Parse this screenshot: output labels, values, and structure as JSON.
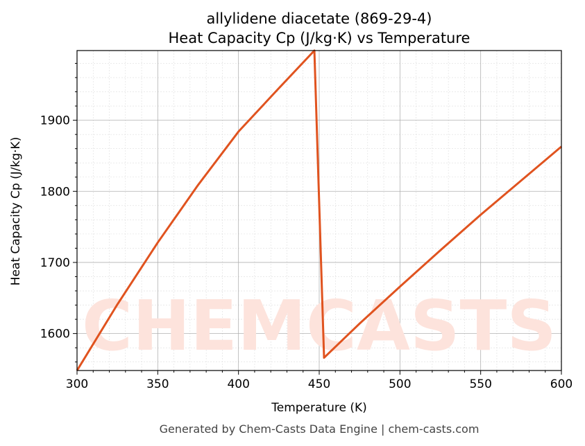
{
  "chart_data": {
    "type": "line",
    "title": "allylidene diacetate (869-29-4)",
    "subtitle": "Heat Capacity Cp (J/kg·K) vs Temperature",
    "xlabel": "Temperature (K)",
    "ylabel": "Heat Capacity Cp (J/kg·K)",
    "xlim": [
      300,
      600
    ],
    "ylim": [
      1548,
      1998
    ],
    "xticks": [
      300,
      350,
      400,
      450,
      500,
      550,
      600
    ],
    "yticks": [
      1600,
      1700,
      1800,
      1900
    ],
    "grid": true,
    "series": [
      {
        "name": "Cp",
        "color": "#e0531f",
        "x": [
          300,
          325,
          350,
          375,
          400,
          425,
          447,
          453,
          475,
          500,
          525,
          550,
          575,
          600
        ],
        "y": [
          1548,
          1641,
          1728,
          1809,
          1884,
          1945,
          1998,
          1566,
          1614,
          1666,
          1717,
          1767,
          1815,
          1863
        ]
      }
    ],
    "watermark": "CHEMCASTS"
  },
  "footer": "Generated by Chem-Casts Data Engine | chem-casts.com"
}
